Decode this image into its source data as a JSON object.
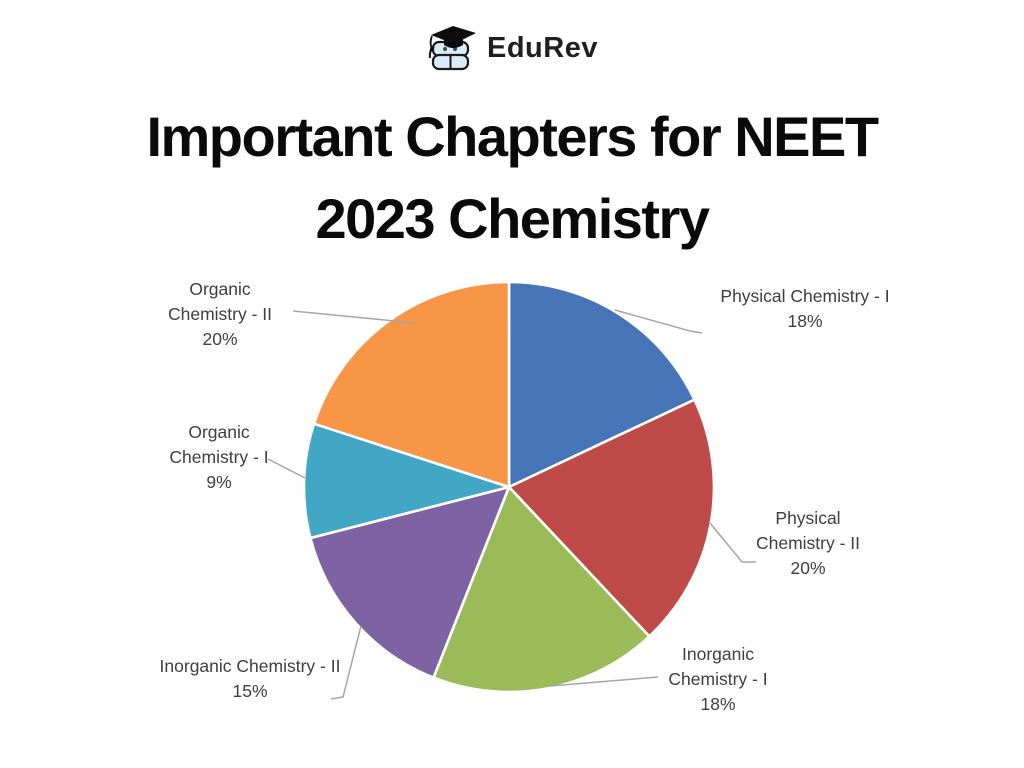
{
  "logo": {
    "brand": "EduRev",
    "icon": "edurev-books-cap-icon"
  },
  "title": {
    "line1": "Important Chapters for NEET",
    "line2": "2023 Chemistry"
  },
  "chart_data": {
    "type": "pie",
    "title": "Important Chapters for NEET 2023 Chemistry",
    "start_angle_deg": -90,
    "direction": "clockwise",
    "legend_position": "none-direct-labels-with-leader-lines",
    "label_text_color": "#3e3e3e",
    "leader_line_color": "#a6a6a6",
    "slice_border_color": "#ffffff",
    "slices": [
      {
        "label": "Physical Chemistry - I",
        "label_lines": [
          "Physical Chemistry - I"
        ],
        "pct": "18%",
        "value": 18,
        "color": "#4676B8"
      },
      {
        "label": "Physical Chemistry - II",
        "label_lines": [
          "Physical",
          "Chemistry - II"
        ],
        "pct": "20%",
        "value": 20,
        "color": "#BE4B48"
      },
      {
        "label": "Inorganic Chemistry - I",
        "label_lines": [
          "Inorganic",
          "Chemistry - I"
        ],
        "pct": "18%",
        "value": 18,
        "color": "#9BBB59"
      },
      {
        "label": "Inorganic Chemistry - II",
        "label_lines": [
          "Inorganic Chemistry - II"
        ],
        "pct": "15%",
        "value": 15,
        "color": "#7E63A4"
      },
      {
        "label": "Organic Chemistry - I",
        "label_lines": [
          "Organic",
          "Chemistry - I"
        ],
        "pct": "9%",
        "value": 9,
        "color": "#41A7C4"
      },
      {
        "label": "Organic Chemistry - II",
        "label_lines": [
          "Organic",
          "Chemistry - II"
        ],
        "pct": "20%",
        "value": 20,
        "color": "#F79646"
      }
    ]
  }
}
